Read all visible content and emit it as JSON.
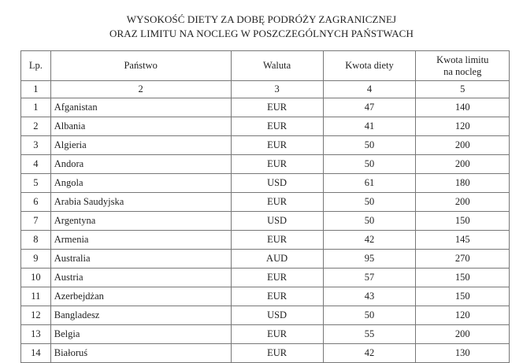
{
  "title": {
    "line1": "WYSOKOŚĆ DIETY ZA DOBĘ PODRÓŻY ZAGRANICZNEJ",
    "line2": "ORAZ LIMITU NA NOCLEG W POSZCZEGÓLNYCH PAŃSTWACH"
  },
  "table": {
    "headers": [
      "Lp.",
      "Państwo",
      "Waluta",
      "Kwota diety",
      "Kwota limitu na nocleg"
    ],
    "column_numbers": [
      "1",
      "2",
      "3",
      "4",
      "5"
    ],
    "rows": [
      [
        "1",
        "Afganistan",
        "EUR",
        "47",
        "140"
      ],
      [
        "2",
        "Albania",
        "EUR",
        "41",
        "120"
      ],
      [
        "3",
        "Algieria",
        "EUR",
        "50",
        "200"
      ],
      [
        "4",
        "Andora",
        "EUR",
        "50",
        "200"
      ],
      [
        "5",
        "Angola",
        "USD",
        "61",
        "180"
      ],
      [
        "6",
        "Arabia Saudyjska",
        "EUR",
        "50",
        "200"
      ],
      [
        "7",
        "Argentyna",
        "USD",
        "50",
        "150"
      ],
      [
        "8",
        "Armenia",
        "EUR",
        "42",
        "145"
      ],
      [
        "9",
        "Australia",
        "AUD",
        "95",
        "270"
      ],
      [
        "10",
        "Austria",
        "EUR",
        "57",
        "150"
      ],
      [
        "11",
        "Azerbejdżan",
        "EUR",
        "43",
        "150"
      ],
      [
        "12",
        "Bangladesz",
        "USD",
        "50",
        "120"
      ],
      [
        "13",
        "Belgia",
        "EUR",
        "55",
        "200"
      ],
      [
        "14",
        "Białoruś",
        "EUR",
        "42",
        "130"
      ]
    ]
  }
}
